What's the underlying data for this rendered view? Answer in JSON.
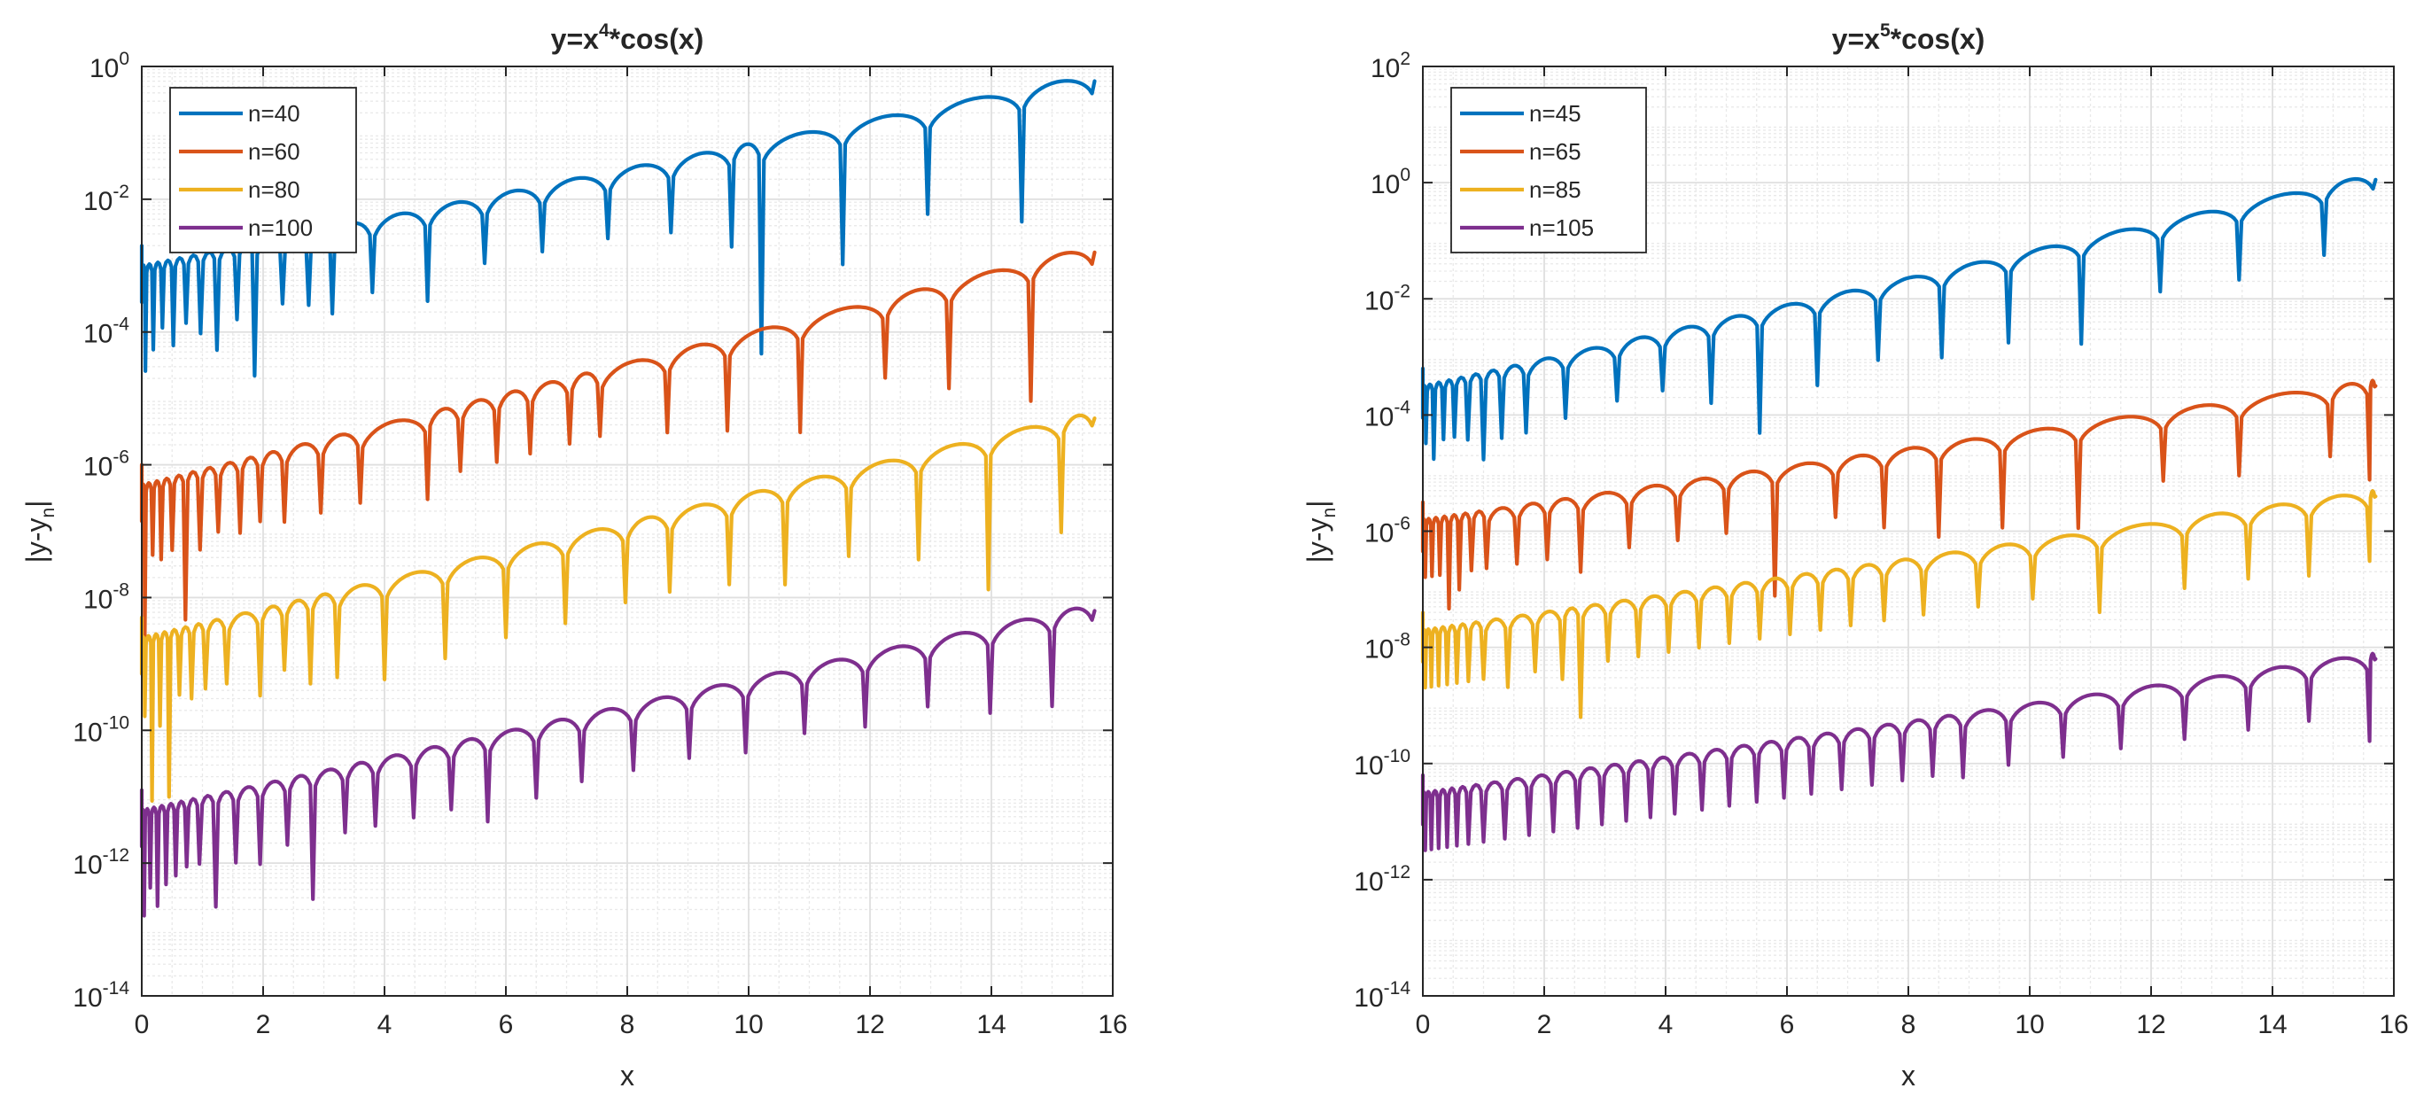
{
  "colors": {
    "series": [
      "#0072BD",
      "#D95319",
      "#EDB120",
      "#7E2F8E"
    ],
    "axis": "#262626",
    "grid": "#DFDFDF",
    "minor_grid": "#E9E9E9",
    "background": "#FFFFFF"
  },
  "chart_data": [
    {
      "type": "line",
      "title": "y=x^4*cos(x)",
      "title_parts": {
        "base": "y=x",
        "exp": "4",
        "tail": "*cos(x)"
      },
      "xlabel": "x",
      "ylabel": "|y-y_n|",
      "ylabel_parts": {
        "base": "|y-y",
        "sub": "n",
        "tail": "|"
      },
      "xlim": [
        0,
        16
      ],
      "ylim_log10": [
        -14,
        0
      ],
      "yscale": "log",
      "grid": true,
      "minor_grid": true,
      "legend_location": "top-left",
      "x_ticks": [
        0,
        2,
        4,
        6,
        8,
        10,
        12,
        14,
        16
      ],
      "x_tick_labels": [
        "0",
        "2",
        "4",
        "6",
        "8",
        "10",
        "12",
        "14",
        "16"
      ],
      "y_ticks_log10": [
        -14,
        -12,
        -10,
        -8,
        -6,
        -4,
        -2,
        0
      ],
      "y_tick_exponents": [
        "-14",
        "-12",
        "-10",
        "-8",
        "-6",
        "-4",
        "-2",
        "0"
      ],
      "y_tick_base": "10",
      "series": [
        {
          "name": "n=40",
          "level_start": -3.0,
          "level_end": -0.12,
          "dips": [
            0.06,
            0.19,
            0.34,
            0.52,
            0.73,
            0.97,
            1.24,
            1.57,
            1.86,
            2.32,
            2.75,
            3.14,
            3.8,
            4.71,
            5.65,
            6.6,
            7.68,
            8.72,
            9.72,
            10.21,
            11.55,
            12.95,
            14.5
          ],
          "dip_depths": [
            1.6,
            1.3,
            1.0,
            1.3,
            1.0,
            1.2,
            1.5,
            1.1,
            2.0,
            1.0,
            1.1,
            1.3,
            1.1,
            1.4,
            1.0,
            1.0,
            1.0,
            1.1,
            1.5,
            3.2,
            2.1,
            1.6,
            2.0
          ]
        },
        {
          "name": "n=60",
          "level_start": -6.3,
          "level_end": -2.7,
          "dips": [
            0.05,
            0.18,
            0.32,
            0.5,
            0.72,
            0.96,
            1.26,
            1.62,
            1.95,
            2.35,
            2.95,
            3.6,
            4.71,
            5.25,
            5.85,
            6.4,
            7.05,
            7.55,
            8.66,
            9.65,
            10.85,
            12.25,
            13.3,
            14.65
          ],
          "dip_depths": [
            2.3,
            1.1,
            1.2,
            1.1,
            2.2,
            1.2,
            1.0,
            1.1,
            1.0,
            1.1,
            1.1,
            1.1,
            1.3,
            1.0,
            1.0,
            1.0,
            1.0,
            1.0,
            1.2,
            1.4,
            1.7,
            1.2,
            1.6,
            2.1
          ]
        },
        {
          "name": "n=80",
          "level_start": -8.6,
          "level_end": -5.2,
          "dips": [
            0.05,
            0.17,
            0.3,
            0.45,
            0.62,
            0.82,
            1.05,
            1.4,
            1.95,
            2.35,
            2.78,
            3.22,
            4.0,
            5.0,
            6.0,
            6.98,
            7.97,
            8.7,
            9.68,
            10.6,
            11.65,
            12.8,
            13.95,
            15.15
          ],
          "dip_depths": [
            1.2,
            2.5,
            1.4,
            2.5,
            1.0,
            1.1,
            1.0,
            1.0,
            1.3,
            1.0,
            1.3,
            1.3,
            1.5,
            1.4,
            1.3,
            1.3,
            1.2,
            1.2,
            1.3,
            1.5,
            1.3,
            1.6,
            2.3,
            1.7
          ]
        },
        {
          "name": "n=100",
          "level_start": -11.2,
          "level_end": -8.1,
          "dips": [
            0.04,
            0.14,
            0.26,
            0.4,
            0.56,
            0.74,
            0.95,
            1.22,
            1.55,
            1.95,
            2.4,
            2.82,
            3.35,
            3.85,
            4.48,
            5.1,
            5.7,
            6.5,
            7.25,
            8.1,
            9.02,
            9.95,
            10.92,
            11.92,
            12.95,
            13.98,
            15.0
          ],
          "dip_depths": [
            1.6,
            1.2,
            1.5,
            1.2,
            1.1,
            1.0,
            1.0,
            1.7,
            1.1,
            1.2,
            1.0,
            1.9,
            1.0,
            1.0,
            1.0,
            1.0,
            1.3,
            1.1,
            1.0,
            1.0,
            1.0,
            1.1,
            1.0,
            1.1,
            1.0,
            1.3,
            1.4
          ]
        }
      ]
    },
    {
      "type": "line",
      "title": "y=x^5*cos(x)",
      "title_parts": {
        "base": "y=x",
        "exp": "5",
        "tail": "*cos(x)"
      },
      "xlabel": "x",
      "ylabel": "|y-y_n|",
      "ylabel_parts": {
        "base": "|y-y",
        "sub": "n",
        "tail": "|"
      },
      "xlim": [
        0,
        16
      ],
      "ylim_log10": [
        -14,
        2
      ],
      "yscale": "log",
      "grid": true,
      "minor_grid": true,
      "legend_location": "top-left",
      "x_ticks": [
        0,
        2,
        4,
        6,
        8,
        10,
        12,
        14,
        16
      ],
      "x_tick_labels": [
        "0",
        "2",
        "4",
        "6",
        "8",
        "10",
        "12",
        "14",
        "16"
      ],
      "y_ticks_log10": [
        -14,
        -12,
        -10,
        -8,
        -6,
        -4,
        -2,
        0,
        2
      ],
      "y_tick_exponents": [
        "-14",
        "-12",
        "-10",
        "-8",
        "-6",
        "-4",
        "-2",
        "0",
        "2"
      ],
      "y_tick_base": "10",
      "series": [
        {
          "name": "n=45",
          "level_start": -3.5,
          "level_end": 0.15,
          "dips": [
            0.05,
            0.18,
            0.34,
            0.52,
            0.74,
            1.0,
            1.3,
            1.7,
            2.35,
            3.2,
            3.95,
            4.75,
            5.55,
            6.5,
            7.5,
            8.55,
            9.65,
            10.85,
            12.15,
            13.45,
            14.85
          ],
          "dip_depths": [
            1.0,
            1.3,
            1.0,
            1.0,
            1.1,
            1.5,
            1.2,
            1.2,
            1.1,
            1.0,
            1.0,
            1.4,
            2.1,
            1.5,
            1.3,
            1.5,
            1.5,
            1.8,
            1.2,
            1.3,
            1.2
          ]
        },
        {
          "name": "n=65",
          "level_start": -5.8,
          "level_end": -3.4,
          "dips": [
            0.04,
            0.15,
            0.28,
            0.43,
            0.6,
            0.8,
            1.05,
            1.55,
            2.05,
            2.6,
            3.4,
            4.2,
            5.0,
            5.8,
            6.8,
            7.6,
            8.5,
            9.55,
            10.8,
            12.2,
            13.45,
            14.95,
            15.6
          ],
          "dip_depths": [
            1.0,
            1.0,
            1.0,
            1.6,
            1.3,
            1.0,
            1.0,
            1.0,
            1.0,
            1.3,
            1.0,
            1.0,
            1.0,
            2.2,
            1.0,
            1.3,
            1.6,
            1.6,
            1.8,
            1.2,
            1.3,
            1.2,
            1.7
          ]
        },
        {
          "name": "n=85",
          "level_start": -7.7,
          "level_end": -5.3,
          "dips": [
            0.04,
            0.14,
            0.26,
            0.4,
            0.56,
            0.75,
            1.0,
            1.4,
            1.85,
            2.3,
            2.6,
            3.05,
            3.55,
            4.05,
            4.55,
            5.05,
            5.55,
            6.05,
            6.55,
            7.05,
            7.6,
            8.25,
            9.15,
            10.05,
            11.15,
            12.55,
            13.6,
            14.6,
            15.6
          ],
          "dip_depths": [
            1.0,
            1.0,
            1.0,
            1.0,
            1.0,
            1.0,
            1.0,
            1.2,
            1.0,
            1.2,
            1.9,
            1.0,
            1.0,
            1.0,
            1.0,
            1.0,
            1.0,
            1.0,
            1.0,
            1.0,
            1.0,
            1.0,
            1.0,
            1.0,
            1.4,
            1.2,
            1.2,
            1.3,
            1.2
          ]
        },
        {
          "name": "n=105",
          "level_start": -10.5,
          "level_end": -8.1,
          "dips": [
            0.04,
            0.14,
            0.26,
            0.4,
            0.56,
            0.75,
            1.0,
            1.35,
            1.75,
            2.15,
            2.55,
            2.95,
            3.35,
            3.75,
            4.15,
            4.6,
            5.05,
            5.5,
            5.95,
            6.4,
            6.9,
            7.4,
            7.9,
            8.4,
            8.9,
            9.65,
            10.55,
            11.5,
            12.55,
            13.6,
            14.6,
            15.6
          ],
          "dip_depths": [
            1.0,
            1.0,
            1.0,
            1.0,
            1.0,
            1.0,
            1.0,
            1.0,
            1.0,
            1.0,
            1.0,
            1.0,
            1.0,
            1.0,
            1.0,
            1.0,
            1.0,
            1.0,
            1.0,
            1.0,
            1.0,
            1.0,
            1.0,
            1.0,
            1.1,
            1.0,
            1.0,
            1.0,
            1.0,
            1.0,
            1.0,
            1.5
          ]
        }
      ]
    }
  ]
}
